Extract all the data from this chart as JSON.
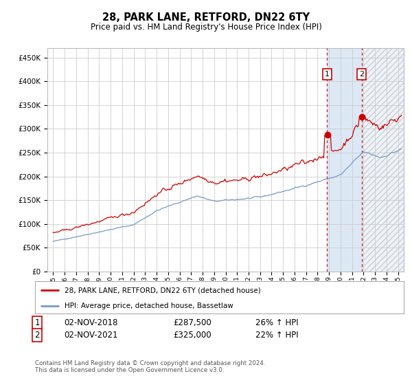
{
  "title": "28, PARK LANE, RETFORD, DN22 6TY",
  "subtitle": "Price paid vs. HM Land Registry's House Price Index (HPI)",
  "red_label": "28, PARK LANE, RETFORD, DN22 6TY (detached house)",
  "blue_label": "HPI: Average price, detached house, Bassetlaw",
  "sale1_date": "02-NOV-2018",
  "sale1_price": 287500,
  "sale1_hpi": "26% ↑ HPI",
  "sale2_date": "02-NOV-2021",
  "sale2_price": 325000,
  "sale2_hpi": "22% ↑ HPI",
  "sale1_x": 2018.84,
  "sale2_x": 2021.84,
  "hatch_end": 2025.5,
  "ylim": [
    0,
    470000
  ],
  "xlim_start": 1994.5,
  "xlim_end": 2025.5,
  "footer": "Contains HM Land Registry data © Crown copyright and database right 2024.\nThis data is licensed under the Open Government Licence v3.0.",
  "background_color": "#ffffff",
  "grid_color": "#cccccc",
  "red_color": "#cc0000",
  "blue_color": "#7799cc",
  "shade_color": "#dce9f5",
  "vline_color": "#cc0000"
}
